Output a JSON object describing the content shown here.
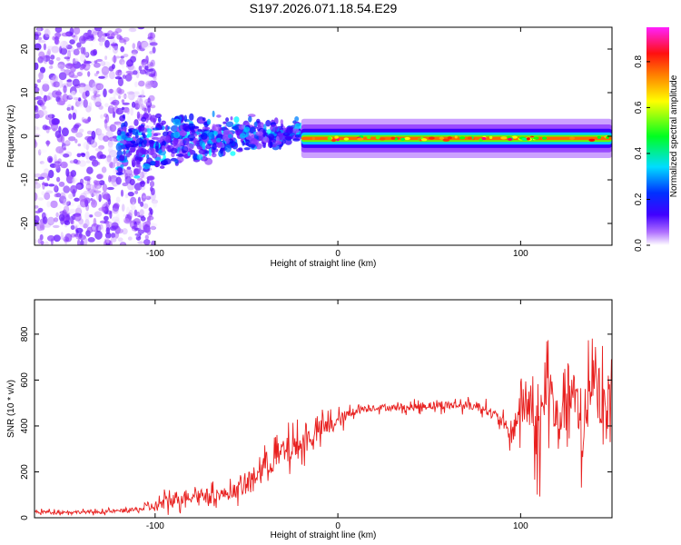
{
  "title": "S197.2026.071.18.54.E29",
  "colors": {
    "snr_line": "#e8201f",
    "axis": "#000000",
    "background": "#ffffff"
  },
  "chart_data": [
    {
      "type": "heatmap",
      "name": "spectrogram",
      "xlabel": "Height of straight line (km)",
      "ylabel": "Frequency (Hz)",
      "xlim": [
        -166,
        150
      ],
      "ylim": [
        -25,
        25
      ],
      "xticks": [
        -100,
        0,
        100
      ],
      "xtick_labels": [
        "-100",
        "0",
        "100"
      ],
      "yticks": [
        -20,
        -10,
        0,
        10,
        20
      ],
      "ytick_labels": [
        "-20",
        "-10",
        "0",
        "10",
        "20"
      ],
      "grid": false,
      "colorbar": {
        "label": "Normalized spectral amplitude",
        "range": [
          0,
          0.95
        ],
        "ticks": [
          0.0,
          0.2,
          0.4,
          0.6,
          0.8
        ],
        "tick_labels": [
          "0.0",
          "0.2",
          "0.4",
          "0.6",
          "0.8"
        ],
        "colormap": [
          "#ffffff",
          "#a050ff",
          "#5000ff",
          "#0000ff",
          "#00ffff",
          "#00ff00",
          "#ffff00",
          "#ff8000",
          "#ff0000",
          "#ff00ff"
        ]
      },
      "description_regions": [
        {
          "x_range": [
            -166,
            -110
          ],
          "freq_range": [
            -25,
            25
          ],
          "amplitude": [
            0.0,
            0.2
          ]
        },
        {
          "x_range": [
            -120,
            -20
          ],
          "freq_range": [
            -8,
            9
          ],
          "amplitude": [
            0.1,
            0.45
          ]
        },
        {
          "x_range": [
            -20,
            150
          ],
          "freq_center": -0.5,
          "freq_halfwidth": 1.5,
          "amplitude": [
            0.5,
            0.95
          ]
        }
      ]
    },
    {
      "type": "line",
      "name": "snr",
      "xlabel": "Height of straight line (km)",
      "ylabel": "SNR (10 * v/v)",
      "xlim": [
        -166,
        150
      ],
      "ylim": [
        0,
        950
      ],
      "xticks": [
        -100,
        0,
        100
      ],
      "xtick_labels": [
        "-100",
        "0",
        "100"
      ],
      "yticks": [
        0,
        200,
        400,
        600,
        800
      ],
      "ytick_labels": [
        "0",
        "200",
        "400",
        "600",
        "800"
      ],
      "grid": false,
      "series": [
        {
          "name": "SNR",
          "x": [
            -166,
            -150,
            -130,
            -110,
            -100,
            -90,
            -80,
            -70,
            -60,
            -50,
            -40,
            -30,
            -20,
            -10,
            0,
            10,
            20,
            30,
            40,
            50,
            60,
            70,
            80,
            90,
            95,
            100,
            105,
            110,
            115,
            120,
            125,
            130,
            135,
            140,
            145,
            150
          ],
          "values": [
            25,
            25,
            25,
            35,
            50,
            80,
            100,
            100,
            105,
            140,
            230,
            280,
            320,
            380,
            420,
            470,
            480,
            480,
            480,
            490,
            490,
            490,
            480,
            420,
            350,
            500,
            480,
            350,
            600,
            400,
            550,
            500,
            350,
            700,
            450,
            550
          ],
          "spread": [
            15,
            15,
            15,
            20,
            50,
            80,
            60,
            60,
            60,
            90,
            120,
            140,
            120,
            100,
            70,
            40,
            30,
            30,
            35,
            40,
            40,
            40,
            45,
            60,
            80,
            250,
            250,
            300,
            300,
            300,
            300,
            300,
            350,
            350,
            300,
            250
          ]
        }
      ]
    }
  ]
}
